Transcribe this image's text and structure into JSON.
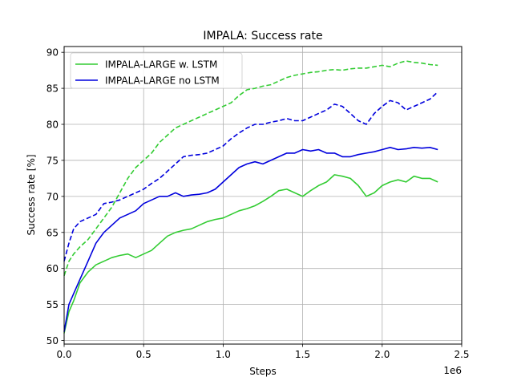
{
  "chart_data": {
    "type": "line",
    "title": "IMPALA: Success rate",
    "xlabel": "Steps",
    "ylabel": "Success rate [%]",
    "x_offset_label": "1e6",
    "xlim": [
      0,
      2.5
    ],
    "ylim": [
      49.5,
      90.8
    ],
    "xticks": [
      0,
      0.5,
      1.0,
      1.5,
      2.0,
      2.5
    ],
    "xtick_labels": [
      "0.0",
      "0.5",
      "1.0",
      "1.5",
      "2.0",
      "2.5"
    ],
    "yticks": [
      50,
      55,
      60,
      65,
      70,
      75,
      80,
      85,
      90
    ],
    "ytick_labels": [
      "50",
      "55",
      "60",
      "65",
      "70",
      "75",
      "80",
      "85",
      "90"
    ],
    "grid": true,
    "legend_position": "upper-left",
    "legend": [
      {
        "label": "IMPALA-LARGE w. LSTM",
        "color": "#33cc33"
      },
      {
        "label": "IMPALA-LARGE no LSTM",
        "color": "#0000dd"
      }
    ],
    "series": [
      {
        "name": "IMPALA-LARGE w. LSTM",
        "variant": "solid",
        "color": "#33cc33",
        "x": [
          0,
          0.03,
          0.06,
          0.1,
          0.15,
          0.2,
          0.25,
          0.3,
          0.35,
          0.4,
          0.45,
          0.5,
          0.55,
          0.6,
          0.65,
          0.7,
          0.75,
          0.8,
          0.85,
          0.9,
          0.95,
          1.0,
          1.05,
          1.1,
          1.15,
          1.2,
          1.25,
          1.3,
          1.35,
          1.4,
          1.45,
          1.5,
          1.55,
          1.6,
          1.65,
          1.7,
          1.75,
          1.8,
          1.85,
          1.9,
          1.95,
          2.0,
          2.05,
          2.1,
          2.15,
          2.2,
          2.25,
          2.3,
          2.35
        ],
        "y": [
          51.0,
          54.0,
          55.5,
          58.0,
          59.5,
          60.5,
          61.0,
          61.5,
          61.8,
          62.0,
          61.5,
          62.0,
          62.5,
          63.5,
          64.5,
          65.0,
          65.3,
          65.5,
          66.0,
          66.5,
          66.8,
          67.0,
          67.5,
          68.0,
          68.3,
          68.7,
          69.3,
          70.0,
          70.8,
          71.0,
          70.5,
          70.0,
          70.8,
          71.5,
          72.0,
          73.0,
          72.8,
          72.5,
          71.5,
          70.0,
          70.5,
          71.5,
          72.0,
          72.3,
          72.0,
          72.8,
          72.5,
          72.5,
          72.0
        ]
      },
      {
        "name": "IMPALA-LARGE w. LSTM",
        "variant": "dashed",
        "color": "#33cc33",
        "x": [
          0,
          0.03,
          0.06,
          0.1,
          0.15,
          0.2,
          0.25,
          0.3,
          0.35,
          0.4,
          0.45,
          0.5,
          0.55,
          0.6,
          0.65,
          0.7,
          0.75,
          0.8,
          0.85,
          0.9,
          0.95,
          1.0,
          1.05,
          1.1,
          1.15,
          1.2,
          1.25,
          1.3,
          1.35,
          1.4,
          1.45,
          1.5,
          1.55,
          1.6,
          1.65,
          1.7,
          1.75,
          1.8,
          1.85,
          1.9,
          1.95,
          2.0,
          2.05,
          2.1,
          2.15,
          2.2,
          2.25,
          2.3,
          2.35
        ],
        "y": [
          59.0,
          61.0,
          62.0,
          63.0,
          64.0,
          65.5,
          67.0,
          68.5,
          70.5,
          72.5,
          74.0,
          75.0,
          76.0,
          77.5,
          78.5,
          79.5,
          80.0,
          80.5,
          81.0,
          81.5,
          82.0,
          82.5,
          83.0,
          84.0,
          84.8,
          85.0,
          85.3,
          85.5,
          86.0,
          86.5,
          86.8,
          87.0,
          87.2,
          87.3,
          87.5,
          87.6,
          87.5,
          87.7,
          87.8,
          87.8,
          88.0,
          88.2,
          88.0,
          88.5,
          88.8,
          88.6,
          88.5,
          88.3,
          88.2
        ]
      },
      {
        "name": "IMPALA-LARGE no LSTM",
        "variant": "solid",
        "color": "#0000dd",
        "x": [
          0,
          0.03,
          0.06,
          0.1,
          0.15,
          0.2,
          0.25,
          0.3,
          0.35,
          0.4,
          0.45,
          0.5,
          0.55,
          0.6,
          0.65,
          0.7,
          0.75,
          0.8,
          0.85,
          0.9,
          0.95,
          1.0,
          1.05,
          1.1,
          1.15,
          1.2,
          1.25,
          1.3,
          1.35,
          1.4,
          1.45,
          1.5,
          1.55,
          1.6,
          1.65,
          1.7,
          1.75,
          1.8,
          1.85,
          1.9,
          1.95,
          2.0,
          2.05,
          2.1,
          2.15,
          2.2,
          2.25,
          2.3,
          2.35
        ],
        "y": [
          51.2,
          55.0,
          56.5,
          58.5,
          61.0,
          63.5,
          65.0,
          66.0,
          67.0,
          67.5,
          68.0,
          69.0,
          69.5,
          70.0,
          70.0,
          70.5,
          70.0,
          70.2,
          70.3,
          70.5,
          71.0,
          72.0,
          73.0,
          74.0,
          74.5,
          74.8,
          74.5,
          75.0,
          75.5,
          76.0,
          76.0,
          76.5,
          76.3,
          76.5,
          76.0,
          76.0,
          75.5,
          75.5,
          75.8,
          76.0,
          76.2,
          76.5,
          76.8,
          76.5,
          76.6,
          76.8,
          76.7,
          76.8,
          76.5
        ]
      },
      {
        "name": "IMPALA-LARGE no LSTM",
        "variant": "dashed",
        "color": "#0000dd",
        "x": [
          0,
          0.03,
          0.06,
          0.1,
          0.15,
          0.2,
          0.25,
          0.3,
          0.35,
          0.4,
          0.45,
          0.5,
          0.55,
          0.6,
          0.65,
          0.7,
          0.75,
          0.8,
          0.85,
          0.9,
          0.95,
          1.0,
          1.05,
          1.1,
          1.15,
          1.2,
          1.25,
          1.3,
          1.35,
          1.4,
          1.45,
          1.5,
          1.55,
          1.6,
          1.65,
          1.7,
          1.75,
          1.8,
          1.85,
          1.9,
          1.95,
          2.0,
          2.05,
          2.1,
          2.15,
          2.2,
          2.25,
          2.3,
          2.35
        ],
        "y": [
          61.0,
          63.5,
          65.5,
          66.5,
          67.0,
          67.5,
          69.0,
          69.2,
          69.5,
          70.0,
          70.5,
          71.0,
          71.8,
          72.5,
          73.5,
          74.5,
          75.5,
          75.7,
          75.8,
          76.0,
          76.5,
          77.0,
          78.0,
          78.8,
          79.5,
          80.0,
          80.0,
          80.3,
          80.5,
          80.8,
          80.5,
          80.5,
          81.0,
          81.5,
          82.0,
          82.8,
          82.5,
          81.5,
          80.5,
          80.0,
          81.5,
          82.5,
          83.3,
          83.0,
          82.0,
          82.5,
          83.0,
          83.5,
          84.5
        ]
      }
    ]
  }
}
